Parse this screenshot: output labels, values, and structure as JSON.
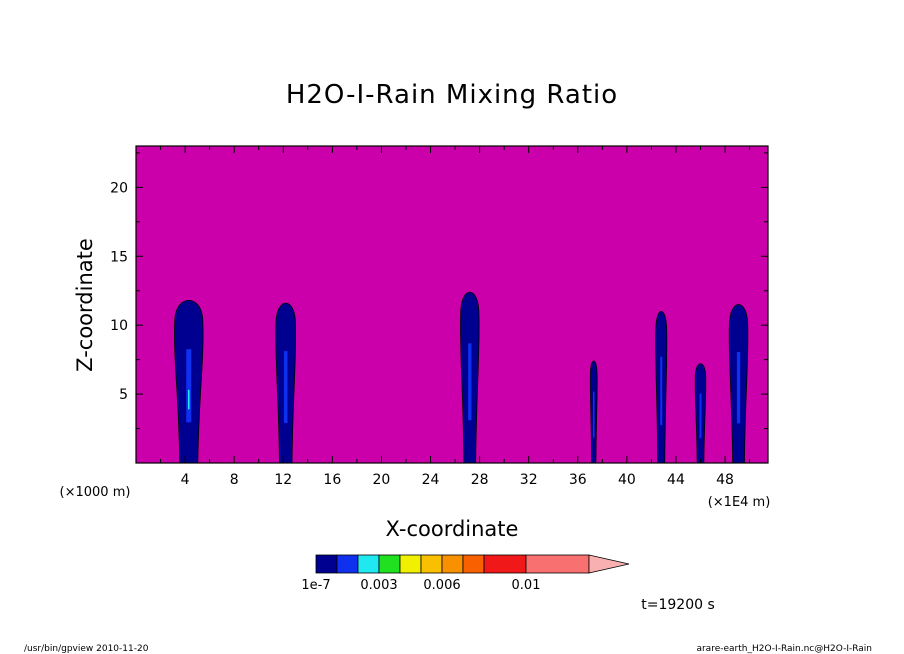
{
  "chart_data": {
    "type": "heatmap",
    "title": "H2O-I-Rain Mixing Ratio",
    "xlabel": "X-coordinate",
    "ylabel": "Z-coordinate",
    "x_multiplier_left": "(×1000 m)",
    "x_multiplier_right": "(×1E4 m)",
    "xlim": [
      0,
      51.5
    ],
    "ylim": [
      0,
      23
    ],
    "x_ticks": [
      4,
      8,
      12,
      16,
      20,
      24,
      28,
      32,
      36,
      40,
      44,
      48
    ],
    "y_ticks": [
      5,
      10,
      15,
      20
    ],
    "background_level_color": "#cc00aa",
    "colorbar": {
      "colors": [
        "#000090",
        "#1030f0",
        "#20e8f0",
        "#20e020",
        "#f0f000",
        "#f8c000",
        "#f89000",
        "#f86000",
        "#f01818",
        "#f87070",
        "#f8b0b0"
      ],
      "tick_labels": [
        "1e-7",
        "0.003",
        "0.006",
        "0.01"
      ],
      "extend": "max"
    },
    "rain_columns": [
      {
        "x_center": 4.3,
        "width": 2.3,
        "top": 11.8
      },
      {
        "x_center": 12.2,
        "width": 1.6,
        "top": 11.6
      },
      {
        "x_center": 27.2,
        "width": 1.5,
        "top": 12.4
      },
      {
        "x_center": 37.3,
        "width": 0.55,
        "top": 7.4
      },
      {
        "x_center": 42.8,
        "width": 0.9,
        "top": 11.0
      },
      {
        "x_center": 46.0,
        "width": 0.85,
        "top": 7.2
      },
      {
        "x_center": 49.1,
        "width": 1.5,
        "top": 11.5
      }
    ],
    "time_label": "t=19200 s"
  },
  "footer": {
    "left": "/usr/bin/gpview   2010-11-20",
    "right": "arare-earth_H2O-I-Rain.nc@H2O-I-Rain"
  }
}
